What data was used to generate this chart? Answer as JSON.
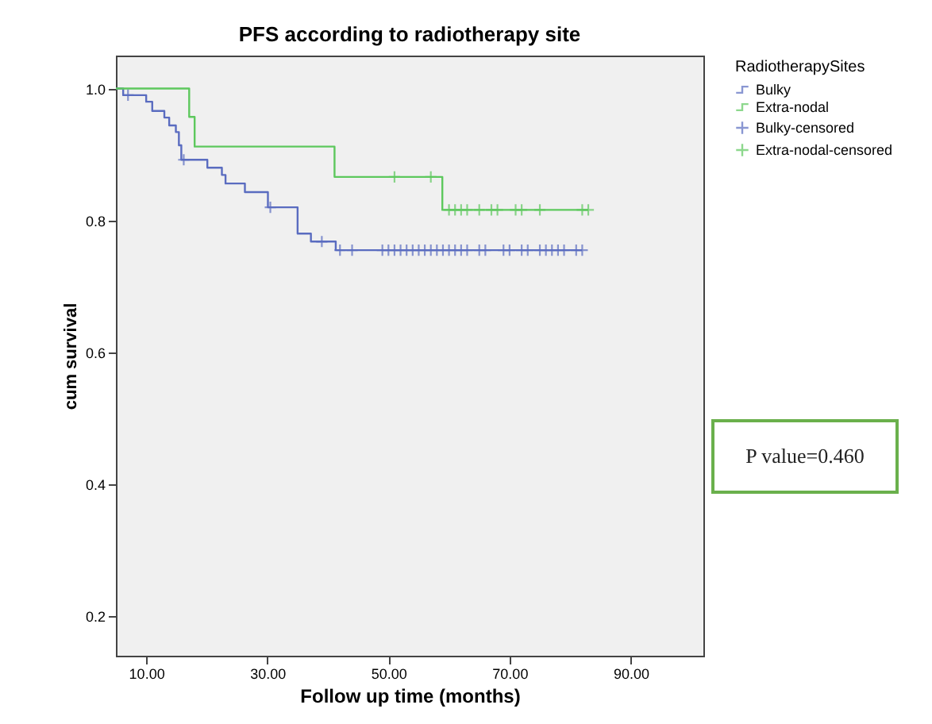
{
  "chart_data": {
    "type": "step",
    "title": "PFS according to radiotherapy site",
    "xlabel": "Follow up time (months)",
    "ylabel": "cum survival",
    "legend_title": "RadiotherapySites",
    "legend": "right",
    "grid": false,
    "xlim": [
      5,
      102
    ],
    "xticks": [
      {
        "value": 10,
        "label": "10.00"
      },
      {
        "value": 30,
        "label": "30.00"
      },
      {
        "value": 50,
        "label": "50.00"
      },
      {
        "value": 70,
        "label": "70.00"
      },
      {
        "value": 90,
        "label": "90.00"
      }
    ],
    "ylim": [
      0.14,
      1.05
    ],
    "yticks": [
      {
        "value": 1.0,
        "label": "1.0"
      },
      0.8,
      0.6,
      0.4,
      0.2
    ],
    "annotations": [
      "P value=0.460"
    ],
    "series": [
      {
        "name": "Bulky",
        "color": "#5a6cc0",
        "x": [
          5,
          6.2,
          10,
          11,
          13,
          13.8,
          14.9,
          15.4,
          15.8,
          20.1,
          22.5,
          23.1,
          26.3,
          30.1,
          35,
          37.2,
          41.3,
          82
        ],
        "values": [
          1.0,
          0.99,
          0.98,
          0.966,
          0.956,
          0.944,
          0.934,
          0.914,
          0.892,
          0.88,
          0.869,
          0.856,
          0.843,
          0.82,
          0.78,
          0.768,
          0.755,
          0.755
        ]
      },
      {
        "name": "Extra-nodal",
        "color": "#5dc85d",
        "x": [
          5,
          17.1,
          18,
          41.1,
          58.9,
          83
        ],
        "values": [
          1.0,
          0.957,
          0.912,
          0.866,
          0.816,
          0.816
        ]
      },
      {
        "name": "Bulky-censored",
        "type": "scatter",
        "marker": "cross",
        "color": "#5a6cc0",
        "x": [
          7,
          16.2,
          30.5,
          39,
          42,
          44,
          49,
          50,
          51,
          52,
          53,
          54,
          55,
          56,
          57,
          58,
          59,
          60,
          61,
          62,
          63,
          65,
          66,
          69,
          70,
          72,
          73,
          75,
          76,
          77,
          78,
          79,
          81,
          82
        ],
        "values": [
          0.99,
          0.892,
          0.82,
          0.768,
          0.755,
          0.755,
          0.755,
          0.755,
          0.755,
          0.755,
          0.755,
          0.755,
          0.755,
          0.755,
          0.755,
          0.755,
          0.755,
          0.755,
          0.755,
          0.755,
          0.755,
          0.755,
          0.755,
          0.755,
          0.755,
          0.755,
          0.755,
          0.755,
          0.755,
          0.755,
          0.755,
          0.755,
          0.755,
          0.755
        ]
      },
      {
        "name": "Extra-nodal-censored",
        "type": "scatter",
        "marker": "cross",
        "color": "#5dc85d",
        "x": [
          51,
          57,
          60,
          61,
          62,
          63,
          65,
          67,
          68,
          71,
          72,
          75,
          82,
          83
        ],
        "values": [
          0.866,
          0.866,
          0.816,
          0.816,
          0.816,
          0.816,
          0.816,
          0.816,
          0.816,
          0.816,
          0.816,
          0.816,
          0.816,
          0.816
        ]
      }
    ]
  }
}
